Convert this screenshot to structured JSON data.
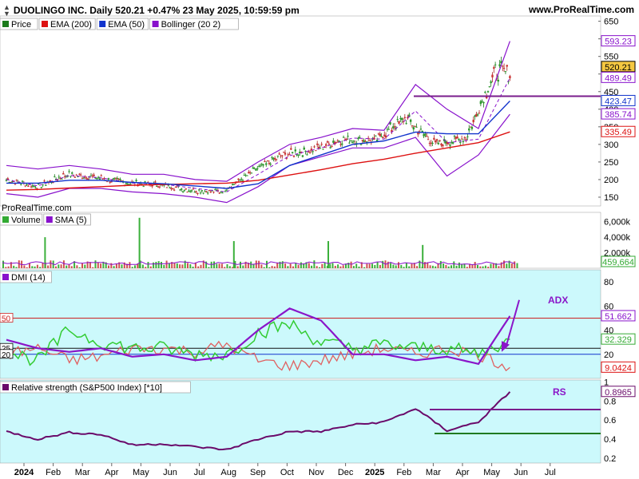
{
  "header": {
    "title": "DUOLINGO INC. Daily 520.21 +0.47% 23 May 2025, 10:59:59 pm",
    "site": "www.ProRealTime.com",
    "watermark": "ProRealTime.com"
  },
  "colors": {
    "panel_bg": "#ccf9fc",
    "ema200": "#dd1111",
    "ema50": "#1133cc",
    "bollinger": "#8811cc",
    "resistance_line": "#7a1d8c",
    "support_line": "#1f7a1f",
    "adx": "#8a16c9",
    "di_plus": "#33cc33",
    "di_minus": "#e06060",
    "rs_line": "#6a0a6a",
    "annotation": "#8a16c9"
  },
  "price_axis_labels": [
    "650",
    "600",
    "550",
    "500",
    "450",
    "400",
    "350",
    "300",
    "250",
    "200",
    "150"
  ],
  "volume_axis_labels": [
    "6,000k",
    "4,000k",
    "2,000k"
  ],
  "dmi_axis_labels": [
    "80",
    "60",
    "40",
    "20"
  ],
  "rs_axis_labels": [
    "1",
    "0.8",
    "0.6",
    "0.4",
    "0.2"
  ],
  "x_labels": [
    {
      "label": "2024",
      "bold": true
    },
    {
      "label": "Feb",
      "bold": false
    },
    {
      "label": "Mar",
      "bold": false
    },
    {
      "label": "Apr",
      "bold": false
    },
    {
      "label": "May",
      "bold": false
    },
    {
      "label": "Jun",
      "bold": false
    },
    {
      "label": "Jul",
      "bold": false
    },
    {
      "label": "Aug",
      "bold": false
    },
    {
      "label": "Sep",
      "bold": false
    },
    {
      "label": "Oct",
      "bold": false
    },
    {
      "label": "Nov",
      "bold": false
    },
    {
      "label": "Dec",
      "bold": false
    },
    {
      "label": "2025",
      "bold": true
    },
    {
      "label": "Feb",
      "bold": false
    },
    {
      "label": "Mar",
      "bold": false
    },
    {
      "label": "Apr",
      "bold": false
    },
    {
      "label": "May",
      "bold": false
    },
    {
      "label": "Jun",
      "bold": false
    },
    {
      "label": "Jul",
      "bold": false
    }
  ],
  "legends": {
    "price": [
      {
        "label": "Price",
        "color": "#1a7a1a"
      },
      {
        "label": "EMA (200)",
        "color": "#dd1111"
      },
      {
        "label": "EMA (50)",
        "color": "#1133cc"
      },
      {
        "label": "Bollinger (20 2)",
        "color": "#8811cc"
      }
    ],
    "volume": [
      {
        "label": "Volume",
        "color": "#33aa33"
      },
      {
        "label": "SMA (5)",
        "color": "#8811cc"
      }
    ],
    "dmi": [
      {
        "label": "DMI (14)",
        "color": "#8811cc"
      }
    ],
    "rs": [
      {
        "label": "Relative strength (S&P500 Index) [*10]",
        "color": "#6a0a6a"
      }
    ]
  },
  "value_badges": {
    "price": [
      {
        "text": "593.23",
        "value": 593.23,
        "color": "#8811cc",
        "fill": "#ffffff"
      },
      {
        "text": "520.21",
        "value": 520.21,
        "color": "#000000",
        "fill": "#f5c842"
      },
      {
        "text": "489.49",
        "value": 489.49,
        "color": "#8811cc",
        "fill": "#ffffff"
      },
      {
        "text": "423.47",
        "value": 423.47,
        "color": "#1133cc",
        "fill": "#ffffff"
      },
      {
        "text": "385.74",
        "value": 385.74,
        "color": "#8811cc",
        "fill": "#ffffff"
      },
      {
        "text": "335.49",
        "value": 335.49,
        "color": "#dd1111",
        "fill": "#ffffff"
      }
    ],
    "volume": [
      {
        "text": "459,664",
        "value": 459664,
        "color": "#33aa33",
        "fill": "#ffffff"
      }
    ],
    "dmi": [
      {
        "text": "51.662",
        "value": 51.662,
        "color": "#8811cc",
        "fill": "#ffffff"
      },
      {
        "text": "32.329",
        "value": 32.329,
        "color": "#33aa33",
        "fill": "#ffffff"
      },
      {
        "text": "9.0424",
        "value": 9.0424,
        "color": "#dd1111",
        "fill": "#ffffff"
      }
    ],
    "rs": [
      {
        "text": "0.8965",
        "value": 0.8965,
        "color": "#6a0a6a",
        "fill": "#ffffff"
      }
    ]
  },
  "dmi_level_labels": [
    {
      "text": "50",
      "value": 50,
      "color": "#cc2222"
    },
    {
      "text": "25",
      "value": 25,
      "color": "#000000"
    },
    {
      "text": "20",
      "value": 20,
      "color": "#000000"
    }
  ],
  "annotations": {
    "adx": "ADX",
    "rs": "RS"
  },
  "chart_data": [
    {
      "type": "candlestick",
      "panel": "price",
      "ylim": [
        125,
        665
      ],
      "x": [
        "2024-01",
        "2024-02",
        "2024-03",
        "2024-04",
        "2024-05",
        "2024-06",
        "2024-07",
        "2024-08",
        "2024-09",
        "2024-10",
        "2024-11",
        "2024-12",
        "2025-01",
        "2025-02",
        "2025-03",
        "2025-04",
        "2025-05"
      ],
      "close": [
        200,
        180,
        215,
        205,
        190,
        185,
        170,
        165,
        220,
        270,
        285,
        315,
        310,
        375,
        300,
        320,
        520
      ],
      "ema200": [
        170,
        172,
        176,
        180,
        184,
        186,
        188,
        190,
        198,
        213,
        228,
        245,
        258,
        275,
        290,
        305,
        335.49
      ],
      "ema50": [
        190,
        190,
        198,
        198,
        192,
        188,
        182,
        175,
        188,
        240,
        270,
        300,
        310,
        335,
        330,
        330,
        423.47
      ],
      "bollinger_upper": [
        240,
        230,
        240,
        230,
        215,
        215,
        200,
        195,
        250,
        300,
        320,
        345,
        340,
        470,
        400,
        345,
        593.23
      ],
      "bollinger_mid": [
        200,
        182,
        212,
        205,
        190,
        187,
        175,
        165,
        215,
        268,
        290,
        318,
        315,
        395,
        305,
        315,
        489.49
      ],
      "bollinger_lower": [
        160,
        150,
        175,
        175,
        165,
        160,
        150,
        135,
        180,
        240,
        265,
        290,
        290,
        320,
        210,
        270,
        385.74
      ],
      "resistance_level": 437,
      "last_price": 520.21
    },
    {
      "type": "bar",
      "panel": "volume",
      "ylim": [
        0,
        7200
      ],
      "unit": "k",
      "spikes": [
        {
          "x": "2024-05",
          "value": 6500
        },
        {
          "x": "2024-02",
          "value": 4000
        },
        {
          "x": "2024-08",
          "value": 3500
        },
        {
          "x": "2024-11",
          "value": 3500
        },
        {
          "x": "2025-02",
          "value": 3000
        }
      ],
      "last_value": 459664
    },
    {
      "type": "line",
      "panel": "dmi",
      "ylim": [
        0,
        90
      ],
      "x": [
        "2024-01",
        "2024-02",
        "2024-03",
        "2024-04",
        "2024-05",
        "2024-06",
        "2024-07",
        "2024-08",
        "2024-09",
        "2024-10",
        "2024-11",
        "2024-12",
        "2025-01",
        "2025-02",
        "2025-03",
        "2025-04",
        "2025-05"
      ],
      "series": [
        {
          "name": "ADX",
          "values": [
            32,
            25,
            22,
            25,
            18,
            20,
            15,
            18,
            40,
            58,
            48,
            20,
            20,
            15,
            18,
            12,
            51.662
          ]
        },
        {
          "name": "DI+",
          "values": [
            22,
            15,
            40,
            30,
            25,
            25,
            20,
            20,
            38,
            45,
            30,
            25,
            28,
            25,
            25,
            20,
            32.329
          ]
        },
        {
          "name": "DI-",
          "values": [
            20,
            25,
            15,
            18,
            25,
            25,
            22,
            28,
            15,
            10,
            15,
            20,
            25,
            20,
            25,
            20,
            9.0424
          ]
        }
      ],
      "levels": [
        50,
        25,
        20
      ]
    },
    {
      "type": "line",
      "panel": "relative_strength",
      "ylim": [
        0.15,
        1.02
      ],
      "x": [
        "2024-01",
        "2024-02",
        "2024-03",
        "2024-04",
        "2024-05",
        "2024-06",
        "2024-07",
        "2024-08",
        "2024-09",
        "2024-10",
        "2024-11",
        "2024-12",
        "2025-01",
        "2025-02",
        "2025-03",
        "2025-04",
        "2025-05"
      ],
      "series": [
        {
          "name": "",
          "values": [
            0.48,
            0.4,
            0.47,
            0.45,
            0.34,
            0.35,
            0.32,
            0.29,
            0.4,
            0.48,
            0.48,
            0.55,
            0.58,
            0.72,
            0.49,
            0.58,
            0.8965
          ]
        }
      ],
      "resistance_level": 0.71,
      "support_level": 0.46
    }
  ]
}
